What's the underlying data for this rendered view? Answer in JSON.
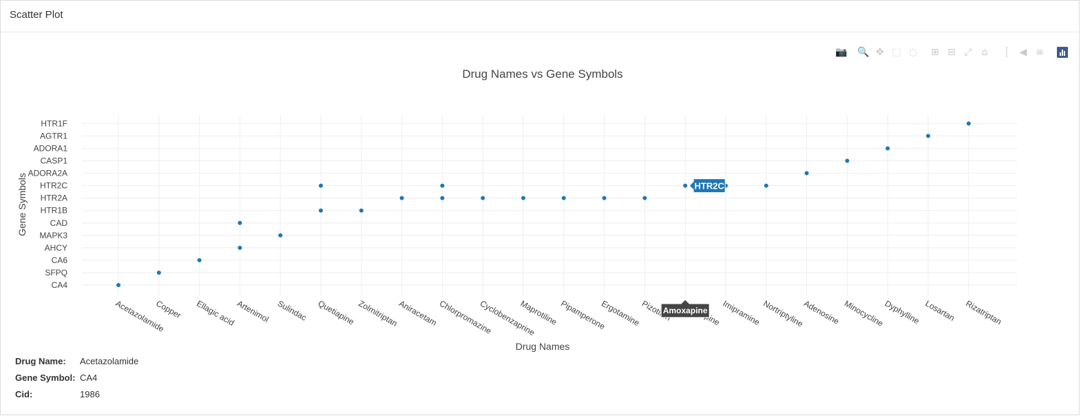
{
  "panel": {
    "title": "Scatter Plot"
  },
  "modebar": {
    "buttons": [
      {
        "name": "camera-icon",
        "glyph": "📷"
      },
      {
        "name": "zoom-icon",
        "glyph": "🔍"
      },
      {
        "name": "pan-icon",
        "glyph": "✥"
      },
      {
        "name": "box-select-icon",
        "glyph": "⬚"
      },
      {
        "name": "lasso-select-icon",
        "glyph": "◌"
      },
      {
        "name": "zoom-in-icon",
        "glyph": "⊞"
      },
      {
        "name": "zoom-out-icon",
        "glyph": "⊟"
      },
      {
        "name": "autoscale-icon",
        "glyph": "⤢"
      },
      {
        "name": "reset-axes-icon",
        "glyph": "⌂"
      },
      {
        "name": "spike-lines-icon",
        "glyph": "⸽"
      },
      {
        "name": "hover-closest-icon",
        "glyph": "◀"
      },
      {
        "name": "hover-compare-icon",
        "glyph": "≡"
      }
    ],
    "active": "zoom-icon",
    "logo": "plotly-logo-icon"
  },
  "chart_data": {
    "type": "scatter",
    "title": "Drug Names vs Gene Symbols",
    "xlabel": "Drug Names",
    "ylabel": "Gene Symbols",
    "x_categories": [
      "Acetazolamide",
      "Copper",
      "Ellagic acid",
      "Artenimol",
      "Sulindac",
      "Quetiapine",
      "Zolmitriptan",
      "Aniracetam",
      "Chlorpromazine",
      "Cyclobenzaprine",
      "Maprotiline",
      "Pipamperone",
      "Ergotamine",
      "Pizotifen",
      "Amoxapine",
      "Imipramine",
      "Nortriptyline",
      "Adenosine",
      "Minocycline",
      "Dyphylline",
      "Losartan",
      "Rizatriptan"
    ],
    "x_visible_labels": [
      "Acetazolamide",
      "Copper",
      "Ellagic acid",
      "Artenimol",
      "Sulindac",
      "Quetiapine",
      "Zolmitriptan",
      "Aniracetam",
      "Chlorpromazine",
      "Cyclobenzaprine",
      "Maprotiline",
      "Pipamperone",
      "Ergotamine",
      "Pizotifen",
      "Amoxapine",
      "Imipramine",
      "Nortriptyline",
      "Adenosine",
      "Minocycline",
      "Dyphylline",
      "Losartan",
      "Rizatriptan"
    ],
    "y_categories": [
      "CA4",
      "SFPQ",
      "CA6",
      "AHCY",
      "MAPK3",
      "CAD",
      "HTR1B",
      "HTR2A",
      "HTR2C",
      "ADORA2A",
      "CASP1",
      "ADORA1",
      "AGTR1",
      "HTR1F"
    ],
    "points": [
      {
        "x": "Acetazolamide",
        "y": "CA4"
      },
      {
        "x": "Copper",
        "y": "SFPQ"
      },
      {
        "x": "Ellagic acid",
        "y": "CA6"
      },
      {
        "x": "Artenimol",
        "y": "AHCY"
      },
      {
        "x": "Artenimol",
        "y": "CAD"
      },
      {
        "x": "Sulindac",
        "y": "MAPK3"
      },
      {
        "x": "Quetiapine",
        "y": "HTR1B"
      },
      {
        "x": "Quetiapine",
        "y": "HTR2C"
      },
      {
        "x": "Zolmitriptan",
        "y": "HTR1B"
      },
      {
        "x": "Aniracetam",
        "y": "HTR2A"
      },
      {
        "x": "Chlorpromazine",
        "y": "HTR2A"
      },
      {
        "x": "Chlorpromazine",
        "y": "HTR2C"
      },
      {
        "x": "Cyclobenzaprine",
        "y": "HTR2A"
      },
      {
        "x": "Maprotiline",
        "y": "HTR2A"
      },
      {
        "x": "Pipamperone",
        "y": "HTR2A"
      },
      {
        "x": "Ergotamine",
        "y": "HTR2A"
      },
      {
        "x": "Pizotifen",
        "y": "HTR2A"
      },
      {
        "x": "Amoxapine",
        "y": "HTR2C"
      },
      {
        "x": "Imipramine",
        "y": "HTR2C"
      },
      {
        "x": "Nortriptyline",
        "y": "HTR2C"
      },
      {
        "x": "Adenosine",
        "y": "ADORA2A"
      },
      {
        "x": "Minocycline",
        "y": "CASP1"
      },
      {
        "x": "Dyphylline",
        "y": "ADORA1"
      },
      {
        "x": "Losartan",
        "y": "AGTR1"
      },
      {
        "x": "Rizatriptan",
        "y": "HTR1F"
      }
    ],
    "marker_color": "#1f77b4",
    "grid": true,
    "hover": {
      "x": "Amoxapine",
      "y": "HTR2C",
      "x_label": "Amoxapine",
      "y_label": "HTR2C"
    }
  },
  "info": {
    "drug_name_label": "Drug Name:",
    "drug_name_value": "Acetazolamide",
    "gene_symbol_label": "Gene Symbol:",
    "gene_symbol_value": "CA4",
    "cid_label": "Cid:",
    "cid_value": "1986"
  }
}
